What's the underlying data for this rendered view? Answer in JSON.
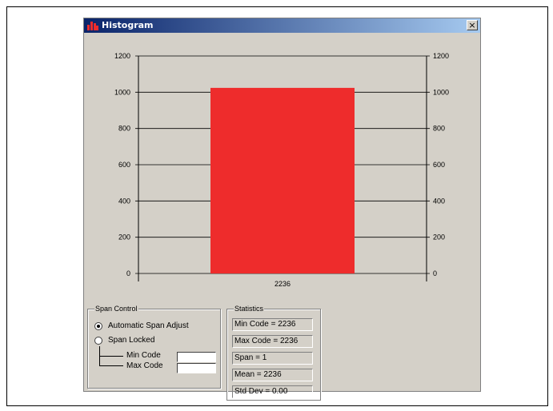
{
  "window": {
    "title": "Histogram",
    "close_label": "×"
  },
  "chart_data": {
    "type": "bar",
    "categories": [
      "2236"
    ],
    "values": [
      1024
    ],
    "ylim": [
      0,
      1200
    ],
    "yticks": [
      0,
      200,
      400,
      600,
      800,
      1000,
      1200
    ],
    "ytick_labels": [
      "0",
      "200",
      "400",
      "600",
      "800",
      "1000",
      "1200"
    ],
    "grid": true,
    "bar_color": "#ee2c2c"
  },
  "span_control": {
    "title": "Span Control",
    "options": [
      {
        "label": "Automatic Span Adjust",
        "selected": true
      },
      {
        "label": "Span Locked",
        "selected": false
      }
    ],
    "min_code_label": "Min Code",
    "max_code_label": "Max Code",
    "min_code_value": "",
    "max_code_value": ""
  },
  "statistics": {
    "title": "Statistics",
    "items": [
      "Min Code =  2236",
      "Max Code =  2236",
      "Span = 1",
      "Mean = 2236",
      "Std Dev = 0.00"
    ]
  },
  "colors": {
    "titlebar_start": "#0a246a",
    "titlebar_end": "#a6caf0",
    "window_bg": "#d4d0c8"
  }
}
